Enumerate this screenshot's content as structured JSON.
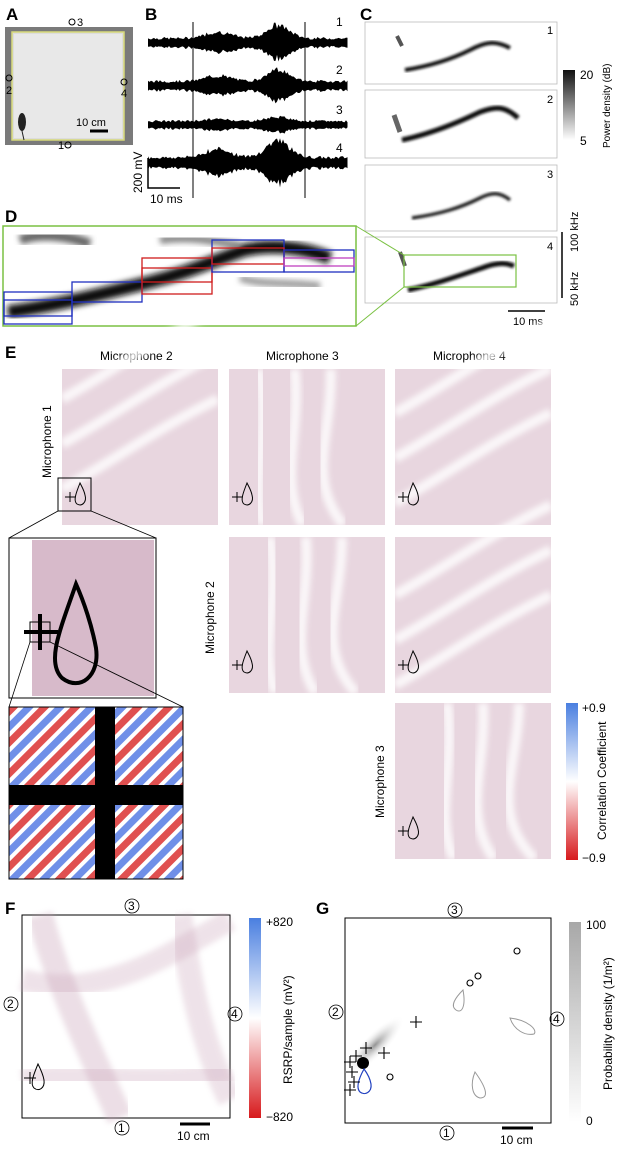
{
  "panels": {
    "A": {
      "label": "A",
      "scalebar": "10 cm",
      "mics": [
        "3",
        "2",
        "4",
        "1"
      ]
    },
    "B": {
      "label": "B",
      "traces": [
        "1",
        "2",
        "3",
        "4"
      ],
      "scale_y": "200 mV",
      "scale_x": "10 ms"
    },
    "C": {
      "label": "C",
      "specs": [
        "1",
        "2",
        "3",
        "4"
      ],
      "cbar_max": "20",
      "cbar_min": "5",
      "cbar_label": "Power density (dB)",
      "freq_hi": "100 kHz",
      "freq_lo": "50 kHz",
      "scale_x": "10 ms"
    },
    "D": {
      "label": "D"
    },
    "E": {
      "label": "E",
      "col_headers": [
        "Microphone 2",
        "Microphone 3",
        "Microphone 4"
      ],
      "row_headers": [
        "Microphone 1",
        "Microphone 2",
        "Microphone 3"
      ],
      "cbar_max": "+0.9",
      "cbar_min": "−0.9",
      "cbar_label": "Correlation Coefficient"
    },
    "F": {
      "label": "F",
      "mics": [
        "3",
        "2",
        "4",
        "1"
      ],
      "cbar_max": "+820",
      "cbar_min": "−820",
      "cbar_label": "RSRP/sample (mV²)",
      "scalebar": "10 cm"
    },
    "G": {
      "label": "G",
      "mics": [
        "3",
        "2",
        "4",
        "1"
      ],
      "cbar_max": "100",
      "cbar_min": "0",
      "cbar_label": "Probability density (1/m²)",
      "scalebar": "10 cm"
    }
  },
  "colors": {
    "corr_neg": "#d7191c",
    "corr_pos": "#4a7fe0",
    "box_green": "#7ac142",
    "box_blue": "#1f2fbf",
    "box_red": "#d01c1c",
    "mouse_blue": "#2040c0"
  }
}
